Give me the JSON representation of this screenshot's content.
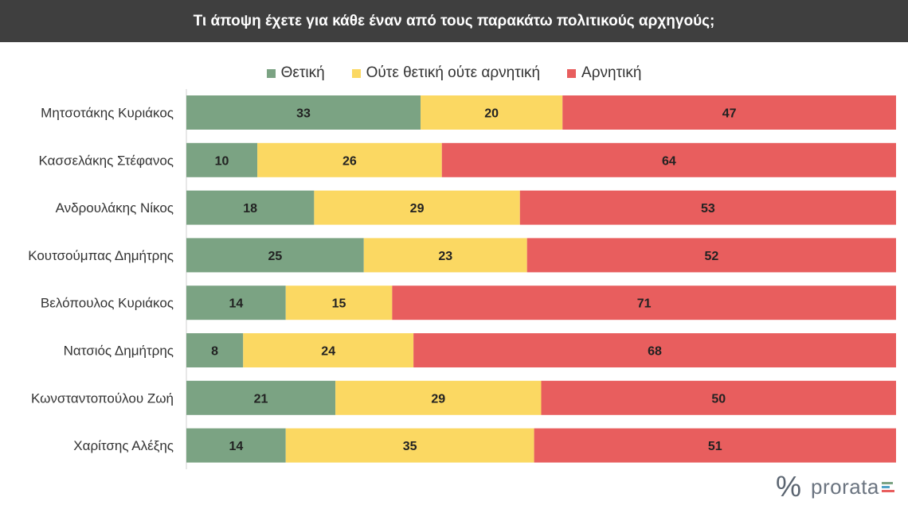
{
  "title": "Τι άποψη έχετε για κάθε έναν από τους παρακάτω πολιτικούς αρχηγούς;",
  "brand": {
    "symbol": "%",
    "name": "prorata"
  },
  "colors": {
    "positive": "#7ba383",
    "neutral": "#fbd862",
    "negative": "#e85e5e",
    "title_bg": "#3f3f3f"
  },
  "chart_data": {
    "type": "bar",
    "orientation": "horizontal",
    "stacked": true,
    "title": "Τι άποψη έχετε για κάθε έναν από τους παρακάτω πολιτικούς αρχηγούς;",
    "legend_position": "top",
    "categories": [
      "Μητσοτάκης Κυριάκος",
      "Κασσελάκης Στέφανος",
      "Ανδρουλάκης Νίκος",
      "Κουτσούμπας Δημήτρης",
      "Βελόπουλος Κυριάκος",
      "Νατσιός Δημήτρης",
      "Κωνσταντοπούλου Ζωή",
      "Χαρίτσης Αλέξης"
    ],
    "series": [
      {
        "name": "Θετική",
        "color": "#7ba383",
        "values": [
          33,
          10,
          18,
          25,
          14,
          8,
          21,
          14
        ]
      },
      {
        "name": "Ούτε θετική ούτε αρνητική",
        "color": "#fbd862",
        "values": [
          20,
          26,
          29,
          23,
          15,
          24,
          29,
          35
        ]
      },
      {
        "name": "Αρνητική",
        "color": "#e85e5e",
        "values": [
          47,
          64,
          53,
          52,
          71,
          68,
          50,
          51
        ]
      }
    ],
    "grid": false
  }
}
